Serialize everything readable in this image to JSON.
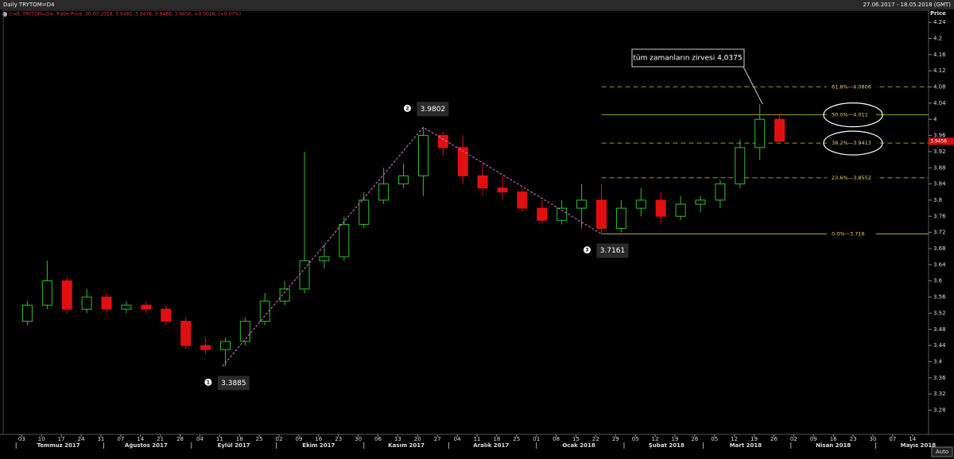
{
  "header": {
    "title": "Daily TRYTOM=D4",
    "range": "27.06.2017 - 18.05.2018 (GMT)",
    "legend": "Cndl, TRYTOM=D4, Trade Price, 30.03.2018, 3.9485, 3.9478, 3.9488, 3.9456, +0.0028, (+0.07%)",
    "auto_button": "Auto"
  },
  "chart_data": {
    "type": "candlestick",
    "y_label": "Price",
    "xlim": [
      "2017-06-27",
      "2018-05-18"
    ],
    "ylim": [
      3.22,
      4.26
    ],
    "yticks": [
      3.28,
      3.32,
      3.36,
      3.4,
      3.44,
      3.48,
      3.52,
      3.56,
      3.6,
      3.64,
      3.68,
      3.72,
      3.76,
      3.8,
      3.84,
      3.88,
      3.92,
      3.96,
      4,
      4.04,
      4.08,
      4.12,
      4.16,
      4.2,
      4.24
    ],
    "xticks": [
      {
        "value": "2017-07-03",
        "label": "03"
      },
      {
        "value": "2017-07-10",
        "label": "10"
      },
      {
        "value": "2017-07-17",
        "label": "17"
      },
      {
        "value": "2017-07-24",
        "label": "24"
      },
      {
        "value": "2017-07-31",
        "label": "31"
      },
      {
        "value": "2017-08-07",
        "label": "07"
      },
      {
        "value": "2017-08-14",
        "label": "14"
      },
      {
        "value": "2017-08-21",
        "label": "21"
      },
      {
        "value": "2017-08-28",
        "label": "28"
      },
      {
        "value": "2017-09-04",
        "label": "04"
      },
      {
        "value": "2017-09-11",
        "label": "11"
      },
      {
        "value": "2017-09-18",
        "label": "18"
      },
      {
        "value": "2017-09-25",
        "label": "25"
      },
      {
        "value": "2017-10-02",
        "label": "02"
      },
      {
        "value": "2017-10-09",
        "label": "09"
      },
      {
        "value": "2017-10-16",
        "label": "16"
      },
      {
        "value": "2017-10-23",
        "label": "23"
      },
      {
        "value": "2017-10-30",
        "label": "30"
      },
      {
        "value": "2017-11-06",
        "label": "06"
      },
      {
        "value": "2017-11-13",
        "label": "13"
      },
      {
        "value": "2017-11-20",
        "label": "20"
      },
      {
        "value": "2017-11-27",
        "label": "27"
      },
      {
        "value": "2017-12-04",
        "label": "04"
      },
      {
        "value": "2017-12-11",
        "label": "11"
      },
      {
        "value": "2017-12-18",
        "label": "18"
      },
      {
        "value": "2017-12-25",
        "label": "25"
      },
      {
        "value": "2018-01-01",
        "label": "01"
      },
      {
        "value": "2018-01-08",
        "label": "08"
      },
      {
        "value": "2018-01-15",
        "label": "15"
      },
      {
        "value": "2018-01-22",
        "label": "22"
      },
      {
        "value": "2018-01-29",
        "label": "29"
      },
      {
        "value": "2018-02-05",
        "label": "05"
      },
      {
        "value": "2018-02-12",
        "label": "12"
      },
      {
        "value": "2018-02-19",
        "label": "19"
      },
      {
        "value": "2018-02-26",
        "label": "26"
      },
      {
        "value": "2018-03-05",
        "label": "05"
      },
      {
        "value": "2018-03-12",
        "label": "12"
      },
      {
        "value": "2018-03-19",
        "label": "19"
      },
      {
        "value": "2018-03-26",
        "label": "26"
      },
      {
        "value": "2018-04-02",
        "label": "02"
      },
      {
        "value": "2018-04-09",
        "label": "09"
      },
      {
        "value": "2018-04-16",
        "label": "16"
      },
      {
        "value": "2018-04-23",
        "label": "23"
      },
      {
        "value": "2018-04-30",
        "label": "30"
      },
      {
        "value": "2018-05-07",
        "label": "07"
      },
      {
        "value": "2018-05-14",
        "label": "14"
      }
    ],
    "months": [
      {
        "value": "2017-07-01",
        "label": "Temmuz 2017"
      },
      {
        "value": "2017-08-01",
        "label": "Ağustos 2017"
      },
      {
        "value": "2017-09-01",
        "label": "Eylül 2017"
      },
      {
        "value": "2017-10-01",
        "label": "Ekim 2017"
      },
      {
        "value": "2017-11-01",
        "label": "Kasım 2017"
      },
      {
        "value": "2017-12-01",
        "label": "Aralık 2017"
      },
      {
        "value": "2018-01-01",
        "label": "Ocak 2018"
      },
      {
        "value": "2018-02-01",
        "label": "Şubat 2018"
      },
      {
        "value": "2018-03-01",
        "label": "Mart 2018"
      },
      {
        "value": "2018-04-01",
        "label": "Nisan 2018"
      },
      {
        "value": "2018-05-01",
        "label": "Mayıs 2018"
      }
    ],
    "x": [
      "2017-07-03",
      "2017-07-10",
      "2017-07-17",
      "2017-07-24",
      "2017-07-31",
      "2017-08-07",
      "2017-08-14",
      "2017-08-21",
      "2017-08-28",
      "2017-09-04",
      "2017-09-11",
      "2017-09-18",
      "2017-09-25",
      "2017-10-02",
      "2017-10-09",
      "2017-10-16",
      "2017-10-23",
      "2017-10-30",
      "2017-11-06",
      "2017-11-13",
      "2017-11-20",
      "2017-11-27",
      "2017-12-04",
      "2017-12-11",
      "2017-12-18",
      "2017-12-25",
      "2018-01-01",
      "2018-01-08",
      "2018-01-15",
      "2018-01-22",
      "2018-01-29",
      "2018-02-05",
      "2018-02-12",
      "2018-02-19",
      "2018-02-26",
      "2018-03-05",
      "2018-03-12",
      "2018-03-19",
      "2018-03-26"
    ],
    "open": [
      3.5,
      3.54,
      3.6,
      3.53,
      3.56,
      3.53,
      3.54,
      3.53,
      3.5,
      3.44,
      3.43,
      3.45,
      3.5,
      3.55,
      3.58,
      3.65,
      3.66,
      3.74,
      3.8,
      3.84,
      3.86,
      3.96,
      3.93,
      3.86,
      3.83,
      3.82,
      3.78,
      3.75,
      3.78,
      3.8,
      3.73,
      3.78,
      3.8,
      3.76,
      3.79,
      3.8,
      3.84,
      3.93,
      4.0
    ],
    "high": [
      3.55,
      3.65,
      3.61,
      3.58,
      3.57,
      3.55,
      3.55,
      3.54,
      3.51,
      3.46,
      3.46,
      3.51,
      3.57,
      3.6,
      3.92,
      3.69,
      3.76,
      3.82,
      3.88,
      3.89,
      3.98,
      3.97,
      3.96,
      3.89,
      3.86,
      3.83,
      3.8,
      3.8,
      3.84,
      3.84,
      3.8,
      3.83,
      3.82,
      3.81,
      3.81,
      3.85,
      3.95,
      4.0375,
      4.01
    ],
    "low": [
      3.49,
      3.53,
      3.52,
      3.52,
      3.52,
      3.52,
      3.52,
      3.49,
      3.43,
      3.42,
      3.3885,
      3.44,
      3.49,
      3.54,
      3.57,
      3.63,
      3.65,
      3.73,
      3.79,
      3.83,
      3.81,
      3.91,
      3.84,
      3.81,
      3.8,
      3.77,
      3.74,
      3.74,
      3.73,
      3.716,
      3.72,
      3.76,
      3.74,
      3.75,
      3.77,
      3.78,
      3.83,
      3.9,
      3.94
    ],
    "close": [
      3.54,
      3.6,
      3.53,
      3.56,
      3.53,
      3.54,
      3.53,
      3.5,
      3.44,
      3.43,
      3.45,
      3.5,
      3.55,
      3.58,
      3.65,
      3.66,
      3.74,
      3.8,
      3.84,
      3.86,
      3.96,
      3.93,
      3.86,
      3.83,
      3.82,
      3.78,
      3.75,
      3.78,
      3.8,
      3.73,
      3.78,
      3.8,
      3.76,
      3.79,
      3.8,
      3.84,
      3.93,
      4.0,
      3.9456
    ],
    "up_color": "#2fbf2f",
    "down_color": "#e01010",
    "last_price": {
      "value": 3.9456,
      "label": "3.9456"
    },
    "pivots": [
      {
        "number": "1",
        "label": "3.3885",
        "value": 3.3885,
        "x": "2017-09-12"
      },
      {
        "number": "2",
        "label": "3.9802",
        "value": 3.9802,
        "x": "2017-11-22"
      },
      {
        "number": "3",
        "label": "3.7161",
        "value": 3.7161,
        "x": "2018-01-24"
      }
    ],
    "pivot_line_color": "#e070e0",
    "peak_note": {
      "label": "tüm zamanların zirvesi 4,0375",
      "value": 4.0375,
      "x": "2018-03-20"
    },
    "fib_start": "2018-01-24",
    "fib_color": "#d8c040",
    "fib": [
      {
        "label": "0.0%—3.716",
        "value": 3.716,
        "solid": true
      },
      {
        "label": "23.6%—3.8552",
        "value": 3.8552,
        "solid": false
      },
      {
        "label": "38.2%—3.9413",
        "value": 3.9413,
        "solid": false,
        "circled": true
      },
      {
        "label": "50.0%—4.011",
        "value": 4.011,
        "solid": true,
        "circled": true
      },
      {
        "label": "61.8%—4.0806",
        "value": 4.0806,
        "solid": false
      }
    ]
  }
}
